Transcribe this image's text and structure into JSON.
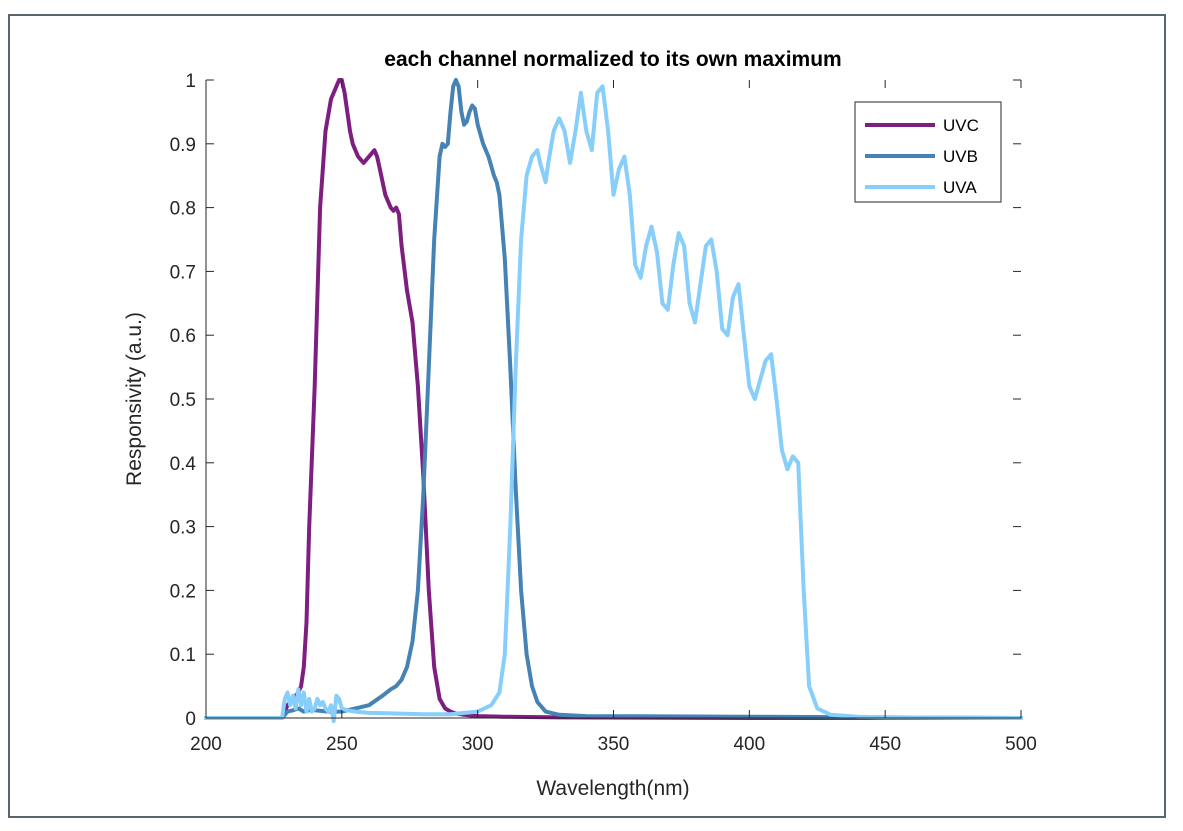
{
  "chart_data": {
    "type": "line",
    "title": "each channel normalized to its own maximum",
    "xlabel": "Wavelength(nm)",
    "ylabel": "Responsivity (a.u.)",
    "xlim": [
      200,
      500
    ],
    "ylim": [
      0,
      1
    ],
    "xticks": [
      200,
      250,
      300,
      350,
      400,
      450,
      500
    ],
    "yticks": [
      0,
      0.1,
      0.2,
      0.3,
      0.4,
      0.5,
      0.6,
      0.7,
      0.8,
      0.9,
      1
    ],
    "grid": false,
    "legend_position": "top-right",
    "series": [
      {
        "name": "UVC",
        "color": "#7e1e80",
        "x": [
          200,
          228,
          230,
          232,
          234,
          235,
          236,
          237,
          238,
          240,
          242,
          244,
          246,
          248,
          249,
          250,
          251,
          252,
          253,
          254,
          256,
          258,
          260,
          262,
          263,
          264,
          266,
          268,
          269,
          270,
          271,
          272,
          274,
          276,
          278,
          280,
          282,
          284,
          286,
          288,
          290,
          292,
          295,
          300,
          310,
          330,
          400,
          500
        ],
        "y": [
          0,
          0,
          0.02,
          0.03,
          0.04,
          0.05,
          0.08,
          0.15,
          0.3,
          0.52,
          0.8,
          0.92,
          0.97,
          0.99,
          1.0,
          1.0,
          0.98,
          0.95,
          0.92,
          0.9,
          0.88,
          0.87,
          0.88,
          0.89,
          0.88,
          0.86,
          0.82,
          0.8,
          0.795,
          0.8,
          0.79,
          0.74,
          0.67,
          0.62,
          0.52,
          0.38,
          0.2,
          0.08,
          0.03,
          0.015,
          0.01,
          0.007,
          0.005,
          0.003,
          0.002,
          0.001,
          0,
          0
        ]
      },
      {
        "name": "UVB",
        "color": "#4682b4",
        "x": [
          200,
          228,
          230,
          232,
          234,
          236,
          238,
          240,
          245,
          250,
          255,
          260,
          265,
          268,
          270,
          272,
          274,
          276,
          278,
          280,
          282,
          284,
          286,
          287,
          288,
          289,
          290,
          291,
          292,
          293,
          294,
          295,
          296,
          297,
          298,
          299,
          300,
          302,
          304,
          306,
          307,
          308,
          310,
          312,
          314,
          316,
          318,
          320,
          322,
          325,
          330,
          340,
          400,
          500
        ],
        "y": [
          0,
          0,
          0.01,
          0.012,
          0.015,
          0.01,
          0.012,
          0.012,
          0.01,
          0.01,
          0.015,
          0.02,
          0.035,
          0.045,
          0.05,
          0.06,
          0.08,
          0.12,
          0.2,
          0.35,
          0.55,
          0.75,
          0.88,
          0.9,
          0.895,
          0.9,
          0.95,
          0.99,
          1.0,
          0.99,
          0.95,
          0.93,
          0.935,
          0.95,
          0.96,
          0.955,
          0.93,
          0.9,
          0.88,
          0.85,
          0.84,
          0.82,
          0.72,
          0.55,
          0.36,
          0.2,
          0.1,
          0.05,
          0.025,
          0.01,
          0.005,
          0.003,
          0.002,
          0
        ]
      },
      {
        "name": "UVA",
        "color": "#87cefa",
        "x": [
          200,
          228,
          229,
          230,
          231,
          232,
          233,
          234,
          235,
          236,
          237,
          238,
          239,
          240,
          241,
          242,
          243,
          244,
          245,
          246,
          247,
          248,
          249,
          250,
          252,
          255,
          260,
          270,
          280,
          290,
          300,
          305,
          308,
          310,
          312,
          314,
          316,
          318,
          320,
          322,
          323,
          325,
          326,
          328,
          330,
          332,
          334,
          336,
          338,
          340,
          342,
          344,
          346,
          348,
          350,
          352,
          354,
          356,
          358,
          360,
          362,
          364,
          366,
          368,
          370,
          372,
          374,
          376,
          378,
          380,
          382,
          384,
          386,
          388,
          390,
          392,
          394,
          396,
          398,
          400,
          402,
          404,
          406,
          408,
          410,
          412,
          414,
          416,
          418,
          420,
          422,
          425,
          430,
          440,
          450,
          500
        ],
        "y": [
          0,
          0,
          0.03,
          0.04,
          0.02,
          0.035,
          0.015,
          0.045,
          0.02,
          0.04,
          0.01,
          0.03,
          0.01,
          0.015,
          0.03,
          0.02,
          0.025,
          0.015,
          0.01,
          0.02,
          -0.005,
          0.035,
          0.03,
          0.015,
          0.012,
          0.01,
          0.008,
          0.007,
          0.006,
          0.006,
          0.01,
          0.02,
          0.04,
          0.1,
          0.3,
          0.55,
          0.75,
          0.85,
          0.88,
          0.89,
          0.87,
          0.84,
          0.87,
          0.92,
          0.94,
          0.92,
          0.87,
          0.92,
          0.98,
          0.92,
          0.89,
          0.98,
          0.99,
          0.92,
          0.82,
          0.86,
          0.88,
          0.82,
          0.71,
          0.69,
          0.74,
          0.77,
          0.73,
          0.65,
          0.64,
          0.71,
          0.76,
          0.74,
          0.65,
          0.62,
          0.68,
          0.74,
          0.75,
          0.7,
          0.61,
          0.6,
          0.66,
          0.68,
          0.6,
          0.52,
          0.5,
          0.53,
          0.56,
          0.57,
          0.5,
          0.42,
          0.39,
          0.41,
          0.4,
          0.2,
          0.05,
          0.015,
          0.005,
          0.002,
          0.001,
          0
        ]
      }
    ]
  }
}
